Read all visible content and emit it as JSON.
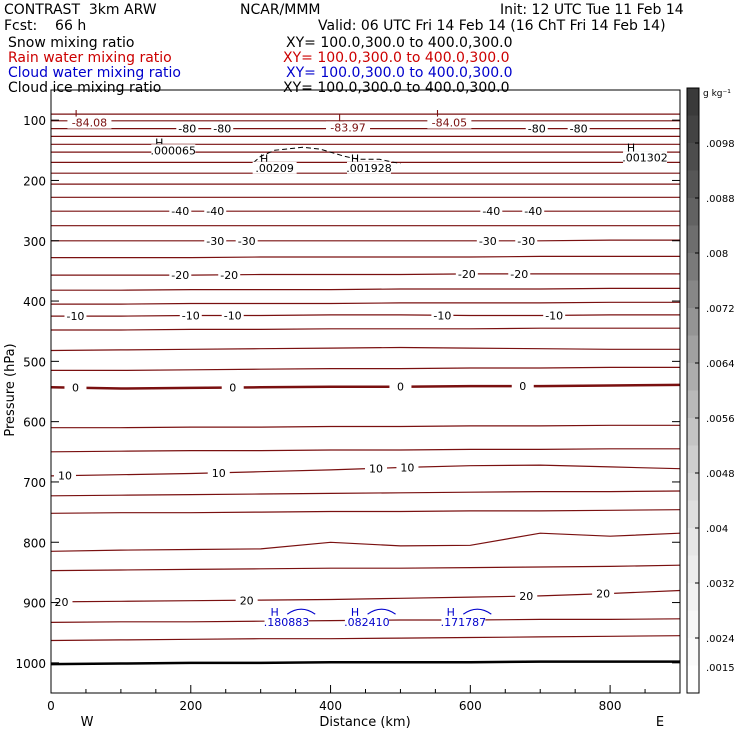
{
  "header": {
    "model": "CONTRAST  3km ARW",
    "org": "NCAR/MMM",
    "init": "Init: 12 UTC Tue 11 Feb 14",
    "fcst": "Fcst:    66 h",
    "valid": "Valid: 06 UTC Fri 14 Feb 14 (16 ChT Fri 14 Feb 14)",
    "fields": [
      {
        "label": "Snow mixing ratio",
        "xy": "XY= 100.0,300.0 to 400.0,300.0",
        "color": "#000000"
      },
      {
        "label": "Rain water mixing ratio",
        "xy": "XY= 100.0,300.0 to 400.0,300.0",
        "color": "#cc0000"
      },
      {
        "label": "Cloud water mixing ratio",
        "xy": "XY= 100.0,300.0 to 400.0,300.0",
        "color": "#0000cc"
      },
      {
        "label": "Cloud ice mixing ratio",
        "xy": "XY= 100.0,300.0 to 400.0,300.0",
        "color": "#000000"
      }
    ]
  },
  "chart_data": {
    "type": "line",
    "xlabel": "Distance (km)",
    "ylabel": "Pressure (hPa)",
    "xlim": [
      0,
      900
    ],
    "ylim": [
      1050,
      50
    ],
    "x_ticks": [
      0,
      200,
      400,
      600,
      800
    ],
    "y_ticks": [
      100,
      200,
      300,
      400,
      500,
      600,
      700,
      800,
      900,
      1000
    ],
    "x_end_labels": {
      "left": "W",
      "right": "E"
    },
    "contour_color": "#7a1010",
    "cloud_color": "#0000cc",
    "isotherm_levels": [
      {
        "p": [
          1002,
          1001,
          1000,
          1000,
          999,
          999,
          999,
          998,
          998,
          998
        ],
        "width": 2.5,
        "color": "#000000"
      },
      {
        "p": [
          963,
          962,
          961,
          960,
          960,
          959,
          958,
          957,
          956,
          955
        ]
      },
      {
        "p": [
          933,
          932,
          932,
          931,
          930,
          929,
          929,
          928,
          928,
          927
        ]
      },
      {
        "p": [
          899,
          898,
          897,
          896,
          895,
          893,
          891,
          889,
          885,
          880
        ],
        "label": "20",
        "label_x": [
          15,
          280,
          680,
          790
        ]
      },
      {
        "p": [
          847,
          846,
          845,
          844,
          843,
          843,
          842,
          841,
          840,
          838
        ]
      },
      {
        "p": [
          815,
          813,
          812,
          811,
          800,
          806,
          805,
          785,
          790,
          785
        ]
      },
      {
        "p": [
          752,
          751,
          751,
          750,
          749,
          749,
          748,
          748,
          747,
          746
        ]
      },
      {
        "p": [
          723,
          722,
          721,
          720,
          719,
          718,
          717,
          716,
          716,
          715
        ]
      },
      {
        "p": [
          690,
          688,
          686,
          683,
          680,
          676,
          673,
          672,
          675,
          678
        ],
        "label": "10",
        "label_x": [
          20,
          240,
          465,
          510
        ]
      },
      {
        "p": [
          650,
          649,
          648,
          648,
          647,
          647,
          646,
          646,
          645,
          645
        ]
      },
      {
        "p": [
          610,
          610,
          609,
          609,
          608,
          608,
          607,
          607,
          606,
          606
        ]
      },
      {
        "p": [
          543,
          545,
          544,
          543,
          542,
          542,
          541,
          541,
          540,
          539
        ],
        "width": 2.5,
        "label": "0",
        "label_x": [
          35,
          260,
          500,
          675
        ]
      },
      {
        "p": [
          515,
          515,
          514,
          513,
          512,
          512,
          511,
          511,
          510,
          510
        ]
      },
      {
        "p": [
          482,
          481,
          480,
          479,
          478,
          477,
          478,
          479,
          480,
          480
        ]
      },
      {
        "p": [
          448,
          448,
          447,
          447,
          446,
          446,
          446,
          445,
          445,
          445
        ]
      },
      {
        "p": [
          425,
          425,
          424,
          424,
          423,
          423,
          424,
          424,
          423,
          423
        ],
        "label": "-10",
        "label_x": [
          35,
          200,
          260,
          560,
          720
        ]
      },
      {
        "p": [
          405,
          405,
          404,
          404,
          404,
          403,
          403,
          403,
          402,
          402
        ]
      },
      {
        "p": [
          382,
          382,
          381,
          381,
          381,
          380,
          380,
          380,
          379,
          379
        ]
      },
      {
        "p": [
          357,
          357,
          357,
          356,
          356,
          356,
          355,
          355,
          355,
          355
        ],
        "label": "-20",
        "label_x": [
          185,
          255,
          595,
          670
        ]
      },
      {
        "p": [
          328,
          328,
          328,
          327,
          327,
          327,
          327,
          326,
          326,
          326
        ]
      },
      {
        "p": [
          300,
          300,
          300,
          300,
          300,
          300,
          300,
          300,
          299,
          299
        ],
        "label": "-30",
        "label_x": [
          235,
          280,
          625,
          680
        ]
      },
      {
        "p": [
          275,
          275,
          275,
          275,
          275,
          275,
          275,
          275,
          275,
          275
        ]
      },
      {
        "p": [
          251,
          251,
          251,
          251,
          251,
          251,
          251,
          251,
          251,
          251
        ],
        "label": "-40",
        "label_x": [
          185,
          235,
          630,
          690
        ]
      },
      {
        "p": [
          228,
          228,
          228,
          228,
          228,
          228,
          228,
          228,
          228,
          228
        ]
      },
      {
        "p": [
          206,
          206,
          206,
          206,
          206,
          206,
          206,
          206,
          206,
          206
        ]
      },
      {
        "p": [
          188,
          188,
          188,
          188,
          188,
          188,
          188,
          188,
          188,
          188
        ]
      },
      {
        "p": [
          170,
          170,
          170,
          170,
          170,
          170,
          170,
          170,
          170,
          170
        ]
      },
      {
        "p": [
          153,
          153,
          153,
          153,
          153,
          153,
          153,
          153,
          153,
          153
        ]
      },
      {
        "p": [
          140,
          140,
          140,
          140,
          140,
          140,
          140,
          140,
          140,
          140
        ]
      },
      {
        "p": [
          127,
          127,
          127,
          127,
          127,
          127,
          127,
          127,
          127,
          127
        ]
      },
      {
        "p": [
          114,
          114,
          114,
          114,
          114,
          114,
          114,
          114,
          114,
          114
        ],
        "label": "-80",
        "label_x": [
          195,
          245,
          695,
          755
        ]
      },
      {
        "p": [
          101,
          101,
          101,
          101,
          101,
          101,
          101,
          101,
          101,
          101
        ]
      },
      {
        "p": [
          90,
          90,
          90,
          90,
          90,
          90,
          90,
          90,
          90,
          90
        ]
      }
    ],
    "annotations": [
      {
        "text": "L",
        "x": 38,
        "p": 90,
        "color": "#7a1010"
      },
      {
        "text": "-84.08",
        "x": 55,
        "p": 104,
        "color": "#7a1010"
      },
      {
        "text": "L",
        "x": 415,
        "p": 96,
        "color": "#7a1010"
      },
      {
        "text": "-83.97",
        "x": 425,
        "p": 112,
        "color": "#7a1010"
      },
      {
        "text": "L",
        "x": 555,
        "p": 90,
        "color": "#7a1010"
      },
      {
        "text": "-84.05",
        "x": 570,
        "p": 104,
        "color": "#7a1010"
      },
      {
        "text": "H",
        "x": 155,
        "p": 137,
        "color": "#000000"
      },
      {
        "text": ".000065",
        "x": 175,
        "p": 150,
        "color": "#000000"
      },
      {
        "text": "H",
        "x": 305,
        "p": 164,
        "color": "#000000"
      },
      {
        "text": ".00209",
        "x": 320,
        "p": 179,
        "color": "#000000"
      },
      {
        "text": "H",
        "x": 435,
        "p": 164,
        "color": "#000000"
      },
      {
        "text": ".001928",
        "x": 455,
        "p": 179,
        "color": "#000000"
      },
      {
        "text": "H",
        "x": 830,
        "p": 145,
        "color": "#000000"
      },
      {
        "text": ".001302",
        "x": 850,
        "p": 162,
        "color": "#000000"
      },
      {
        "text": "H",
        "x": 320,
        "p": 916,
        "color": "#0000cc"
      },
      {
        "text": ".180883",
        "x": 337,
        "p": 932,
        "color": "#0000cc"
      },
      {
        "text": "H",
        "x": 435,
        "p": 916,
        "color": "#0000cc"
      },
      {
        "text": ".082410",
        "x": 452,
        "p": 932,
        "color": "#0000cc"
      },
      {
        "text": "H",
        "x": 572,
        "p": 916,
        "color": "#0000cc"
      },
      {
        "text": ".171787",
        "x": 590,
        "p": 932,
        "color": "#0000cc"
      }
    ],
    "dashed_contours": [
      {
        "x": [
          290,
          300,
          320,
          360,
          385,
          420,
          440,
          470,
          500
        ],
        "p": [
          170,
          160,
          150,
          145,
          148,
          160,
          165,
          165,
          172
        ]
      }
    ],
    "colorbar": {
      "unit": "g kg⁻¹",
      "tick_labels": [
        ".0098",
        ".0088",
        ".008",
        ".0072",
        ".0064",
        ".0056",
        ".0048",
        ".004",
        ".0032",
        ".0024",
        ".0015"
      ],
      "colors": [
        "#3a3a3a",
        "#434343",
        "#4d4d4d",
        "#575757",
        "#626262",
        "#6e6e6e",
        "#7a7a7a",
        "#878787",
        "#949494",
        "#a1a1a1",
        "#adadad",
        "#b9b9b9",
        "#c4c4c4",
        "#cecece",
        "#d7d7d7",
        "#dfdfdf",
        "#e6e6e6",
        "#ececec",
        "#f2f2f2",
        "#f7f7f7",
        "#fbfbfb",
        "#ffffff"
      ]
    }
  }
}
